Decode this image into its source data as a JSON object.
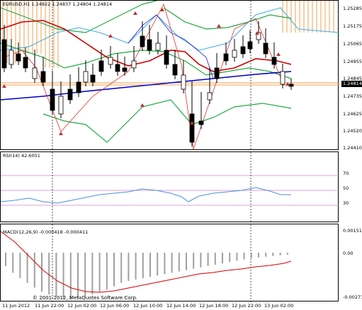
{
  "main_chart": {
    "header": "EURUSD,H1  1.24822 1.24837 1.24804 1.24814",
    "price_scale": [
      "1.25285",
      "1.25175",
      "1.25065",
      "1.24955",
      "1.24845",
      "1.24735",
      "1.24625",
      "1.24520",
      "1.24410"
    ],
    "current_price": "1.24814",
    "colors": {
      "background": "#ffffff",
      "candle": "#000000",
      "ma_red": "#d00000",
      "ma_blue": "#0000c8",
      "bands": "#22aa44",
      "envelope": "#3cb0e0",
      "zigzag": "#e03030",
      "fractals": "#c03030",
      "level_line": "#f0a050"
    }
  },
  "rsi": {
    "label": "RSI(14) 42.6051",
    "levels": [
      "70",
      "50",
      "30"
    ],
    "color": "#4a90d9"
  },
  "macd": {
    "label": "MACD(12,26,9) -0.000418 -0.000411",
    "scale": [
      "0.00151",
      "0.00",
      "-0.00271"
    ],
    "signal_color": "#d00000",
    "hist_color": "#a0a0a0"
  },
  "copyright": "© 2001-2012, MetaQuotes Software Corp.",
  "time_axis": [
    "11 Jun 2012",
    "11 Jun 22:00",
    "12 Jun 02:00",
    "12 Jun 06:00",
    "12 Jun 10:00",
    "12 Jun 14:00",
    "12 Jun 18:00",
    "12 Jun 22:00",
    "13 Jun 02:00"
  ]
}
